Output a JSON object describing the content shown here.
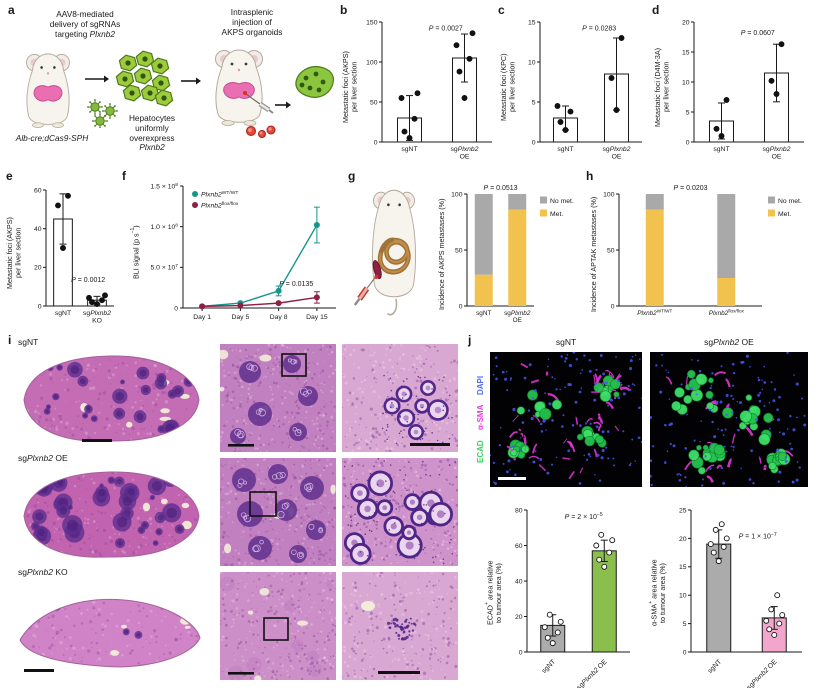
{
  "panel_a": {
    "label": "a",
    "aav_text": "AAV8-mediated\ndelivery of sgRNAs\ntargeting *Plxnb2*",
    "mouse_label": "*Alb-cre;dCas9-SPH*",
    "hep_label": "Hepatocytes\nuniformly\noverexpress\n*Plxnb2*",
    "inj_label": "Intrasplenic\ninjection of\nAKPS organoids"
  },
  "panel_b": {
    "label": "b",
    "ylabel": "Metastatic foci (AKPS)\nper liver section",
    "chart": {
      "type": "bar_scatter",
      "ylim": [
        0,
        150
      ],
      "yticks": [
        0,
        50,
        100,
        150
      ],
      "categories": [
        "sgNT",
        "sg*Plxnb2*\nOE"
      ],
      "bars": [
        30,
        105
      ],
      "errors": [
        28,
        30
      ],
      "points": [
        [
          5,
          13,
          29,
          55,
          61
        ],
        [
          55,
          88,
          104,
          121,
          136
        ]
      ],
      "p": "*P* = 0.0027",
      "p_pos": [
        0.58,
        0.02
      ]
    }
  },
  "panel_c": {
    "label": "c",
    "ylabel": "Metastatic foci (KPC)\nper liver section",
    "chart": {
      "type": "bar_scatter",
      "ylim": [
        0,
        15
      ],
      "yticks": [
        0,
        5,
        10,
        15
      ],
      "categories": [
        "sgNT",
        "sg*Plxnb2*\nOE"
      ],
      "bars": [
        3,
        8.5
      ],
      "errors": [
        1.5,
        4.5
      ],
      "points": [
        [
          1.5,
          2.5,
          3.8,
          4.5
        ],
        [
          4,
          8,
          13
        ]
      ],
      "p": "*P* = 0.0283",
      "p_pos": [
        0.58,
        0.02
      ]
    }
  },
  "panel_d": {
    "label": "d",
    "ylabel": "Metastatic foci (D4M-3A)\nper liver section",
    "chart": {
      "type": "bar_scatter",
      "ylim": [
        0,
        20
      ],
      "yticks": [
        0,
        5,
        10,
        15,
        20
      ],
      "categories": [
        "sgNT",
        "sg*Plxnb2*\nOE"
      ],
      "bars": [
        3.5,
        11.5
      ],
      "errors": [
        3,
        4.8
      ],
      "points": [
        [
          1,
          2.2,
          7
        ],
        [
          8,
          10.2,
          16.3
        ]
      ],
      "p": "*P* = 0.0607",
      "p_pos": [
        0.58,
        0.06
      ]
    }
  },
  "panel_e": {
    "label": "e",
    "ylabel": "Metastatic foci (AKPS)\nper liver section",
    "chart": {
      "type": "bar_scatter",
      "ylim": [
        0,
        60
      ],
      "yticks": [
        0,
        20,
        40,
        60
      ],
      "categories": [
        "sgNT",
        "sg*Plxnb2*\nKO"
      ],
      "bars": [
        45,
        3
      ],
      "errors": [
        13,
        2
      ],
      "points": [
        [
          30,
          52,
          57
        ],
        [
          1,
          2,
          3,
          4.2,
          5.5
        ]
      ],
      "p": "*P* = 0.0012",
      "p_pos": [
        0.62,
        0.74
      ]
    }
  },
  "panel_f": {
    "label": "f",
    "ylabel": "BLI signal (p s^−1^)",
    "chart": {
      "type": "line",
      "ylim": [
        0,
        150000000
      ],
      "yticks": [
        0,
        50000000,
        100000000,
        150000000
      ],
      "ytick_labels": [
        "0",
        "5.0 × 10^7^",
        "1.0 × 10^8^",
        "1.5 × 10^8^"
      ],
      "x_labels": [
        "Day 1",
        "Day 5",
        "Day 8",
        "Day 15"
      ],
      "series": [
        {
          "name": "*Plxnb2*^WT/WT^",
          "color": "#17958a",
          "values": [
            2000000,
            6000000,
            21000000,
            102000000
          ],
          "errors": [
            1000000,
            2500000,
            6000000,
            22000000
          ]
        },
        {
          "name": "*Plxnb2*^flox/flox^",
          "color": "#8e2043",
          "values": [
            2000000,
            3000000,
            6000000,
            13000000
          ],
          "errors": [
            800000,
            1200000,
            2500000,
            7000000
          ]
        }
      ],
      "p": "*P* = 0.0135",
      "p_pos": [
        0.74,
        0.82
      ]
    }
  },
  "panel_g": {
    "label": "g",
    "ylabel": "Incidence of AKPS metastases (%)",
    "chart": {
      "type": "stacked",
      "ylim": [
        0,
        100
      ],
      "yticks": [
        0,
        50,
        100
      ],
      "categories": [
        "sgNT",
        "sg*Plxnb2*\nOE"
      ],
      "segments": [
        {
          "label": "Met.",
          "color": "#f2c24e",
          "values": [
            28,
            86
          ]
        },
        {
          "label": "No met.",
          "color": "#a9a9a9",
          "values": [
            72,
            14
          ]
        }
      ],
      "legend": [
        {
          "label": "No met.",
          "color": "#a9a9a9"
        },
        {
          "label": "Met.",
          "color": "#f2c24e"
        }
      ],
      "p": "*P* = 0.0513"
    }
  },
  "panel_h": {
    "label": "h",
    "ylabel": "Incidence of APTAK metastases (%)",
    "chart": {
      "type": "stacked",
      "ylim": [
        0,
        100
      ],
      "yticks": [
        0,
        50,
        100
      ],
      "categories": [
        "*Plxnb2*^WT/WT^",
        "*Plxnb2*^flox/flox^"
      ],
      "segments": [
        {
          "label": "Met.",
          "color": "#f2c24e",
          "values": [
            86,
            25
          ]
        },
        {
          "label": "No met.",
          "color": "#a9a9a9",
          "values": [
            14,
            75
          ]
        }
      ],
      "legend": [
        {
          "label": "No met.",
          "color": "#a9a9a9"
        },
        {
          "label": "Met.",
          "color": "#f2c24e"
        }
      ],
      "p": "*P* = 0.0203"
    }
  },
  "panel_i": {
    "label": "i",
    "rows": [
      {
        "label": "sgNT"
      },
      {
        "label": "sg*Plxnb2* OE"
      },
      {
        "label": "sg*Plxnb2* KO"
      }
    ]
  },
  "panel_j": {
    "label": "j",
    "col_labels": [
      "sgNT",
      "sg*Plxnb2* OE"
    ],
    "stain_labels": [
      {
        "text": "ECAD",
        "color": "#35d45e"
      },
      {
        "text": "α-SMA",
        "color": "#e93ce0"
      },
      {
        "text": "DAPI",
        "color": "#4f6bff"
      }
    ],
    "ecad_chart_ylabel": "ECAD^+^ area relative\nto tumour area (%)",
    "sma_chart_ylabel": "α-SMA^+^ area relative\nto tumour area (%)",
    "ecad_chart": {
      "type": "bar_scatter",
      "ylim": [
        0,
        80
      ],
      "yticks": [
        0,
        20,
        40,
        60,
        80
      ],
      "categories": [
        "sgNT",
        "sg*Plxnb2* OE"
      ],
      "rotate_xticks": 45,
      "bars": [
        15,
        57
      ],
      "errors": [
        6,
        6
      ],
      "bar_colors": [
        "#ababab",
        "#8bbf4d"
      ],
      "point_style": "open",
      "points": [
        [
          5,
          8,
          11,
          14,
          17,
          21
        ],
        [
          48,
          52,
          56,
          60,
          63,
          66
        ]
      ],
      "p": "*P* = 2 × 10^−5^",
      "p_pos": [
        0.55,
        0.02
      ]
    },
    "sma_chart": {
      "type": "bar_scatter",
      "ylim": [
        0,
        25
      ],
      "yticks": [
        0,
        5,
        10,
        15,
        20,
        25
      ],
      "categories": [
        "sgNT",
        "sg*Plxnb2* OE"
      ],
      "rotate_xticks": 45,
      "bars": [
        19,
        6
      ],
      "errors": [
        2.5,
        2
      ],
      "bar_colors": [
        "#ababab",
        "#f3a6cb"
      ],
      "point_style": "open",
      "points": [
        [
          16,
          17.5,
          18.5,
          19,
          20,
          21.5,
          22.5
        ],
        [
          3,
          4,
          5,
          5.5,
          6.5,
          7.5,
          10
        ]
      ],
      "p": "*P* = 1 × 10^−7^",
      "p_pos": [
        0.6,
        0.16
      ]
    }
  }
}
